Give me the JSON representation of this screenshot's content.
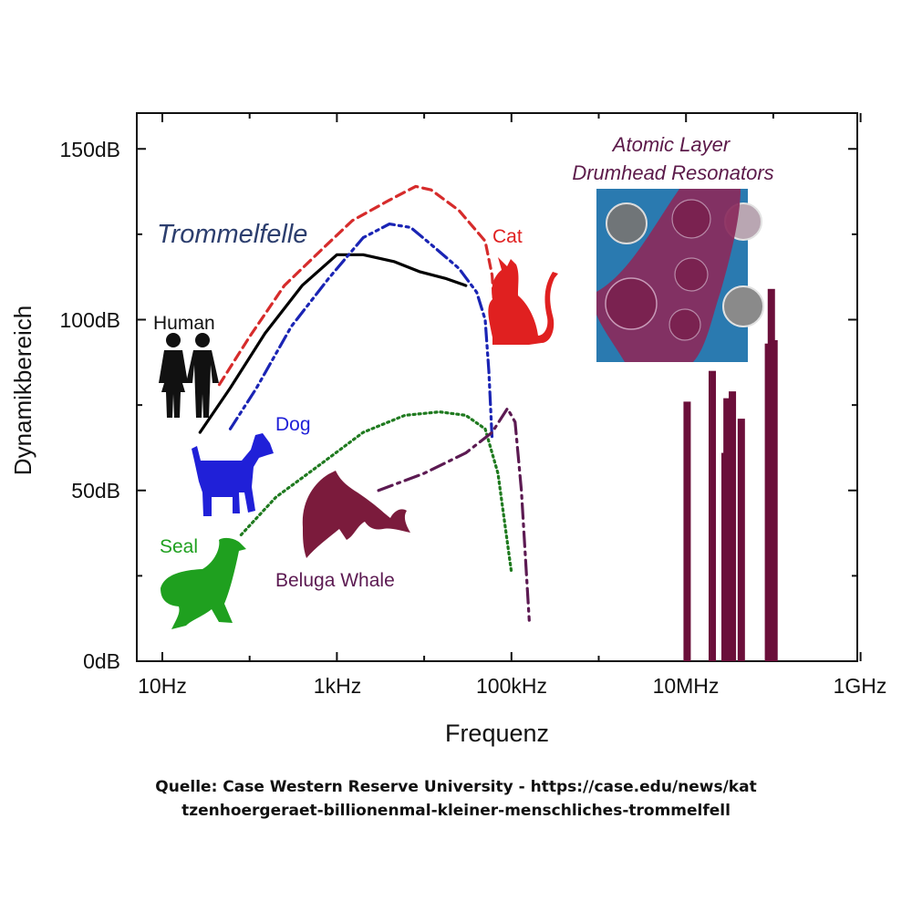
{
  "chart_data": {
    "type": "line",
    "x_scale": "log",
    "xlabel": "Frequenz",
    "ylabel": "Dynamikbereich",
    "xlim": [
      "3Hz",
      "1.3GHz"
    ],
    "ylim": [
      0,
      150
    ],
    "x_ticks": [
      "10Hz",
      "1kHz",
      "100kHz",
      "10MHz",
      "1GHz"
    ],
    "y_ticks": [
      "0dB",
      "50dB",
      "100dB",
      "150dB"
    ],
    "grid": false,
    "annotations": {
      "group_label": "Trommelfelle",
      "device_label_line1": "Atomic Layer",
      "device_label_line2": "Drumhead Resonators"
    },
    "series": [
      {
        "name": "Human",
        "style": "solid",
        "color": "#000000",
        "points": [
          [
            27,
            67
          ],
          [
            60,
            80
          ],
          [
            150,
            96
          ],
          [
            400,
            110
          ],
          [
            1000,
            119
          ],
          [
            2000,
            119
          ],
          [
            4500,
            117
          ],
          [
            9000,
            114
          ],
          [
            18000,
            112
          ],
          [
            30000,
            110
          ]
        ]
      },
      {
        "name": "Cat",
        "style": "dashed",
        "color": "#d62b2b",
        "points": [
          [
            45,
            81
          ],
          [
            100,
            95
          ],
          [
            250,
            110
          ],
          [
            700,
            121
          ],
          [
            1500,
            129
          ],
          [
            4000,
            135
          ],
          [
            8000,
            139
          ],
          [
            12000,
            138
          ],
          [
            25000,
            132
          ],
          [
            50000,
            123
          ],
          [
            60000,
            113
          ],
          [
            65000,
            100
          ],
          [
            70000,
            94
          ]
        ]
      },
      {
        "name": "Dog",
        "style": "dash-dot-dot",
        "color": "#1a24b4",
        "points": [
          [
            60,
            68
          ],
          [
            120,
            80
          ],
          [
            300,
            98
          ],
          [
            800,
            112
          ],
          [
            2000,
            124
          ],
          [
            4000,
            128
          ],
          [
            7000,
            127
          ],
          [
            12000,
            122
          ],
          [
            25000,
            115
          ],
          [
            40000,
            108
          ],
          [
            50000,
            100
          ],
          [
            55000,
            85
          ],
          [
            60000,
            65
          ]
        ]
      },
      {
        "name": "Seal",
        "style": "dotted",
        "color": "#1f7a1f",
        "points": [
          [
            80,
            37
          ],
          [
            200,
            48
          ],
          [
            600,
            57
          ],
          [
            2000,
            67
          ],
          [
            6000,
            72
          ],
          [
            15000,
            73
          ],
          [
            30000,
            72
          ],
          [
            50000,
            68
          ],
          [
            70000,
            55
          ],
          [
            100000,
            26
          ]
        ]
      },
      {
        "name": "Beluga Whale",
        "style": "dash-dot",
        "color": "#5c1a52",
        "points": [
          [
            3000,
            50
          ],
          [
            10000,
            55
          ],
          [
            30000,
            61
          ],
          [
            60000,
            67
          ],
          [
            90000,
            74
          ],
          [
            110000,
            70
          ],
          [
            130000,
            50
          ],
          [
            160000,
            12
          ]
        ]
      }
    ],
    "resonator_bars": [
      {
        "frequency_mhz": 10.3,
        "value": 76
      },
      {
        "frequency_mhz": 20,
        "value": 85
      },
      {
        "frequency_mhz": 28,
        "value": 61
      },
      {
        "frequency_mhz": 29.5,
        "value": 77
      },
      {
        "frequency_mhz": 34,
        "value": 79
      },
      {
        "frequency_mhz": 43,
        "value": 71
      },
      {
        "frequency_mhz": 88,
        "value": 93
      },
      {
        "frequency_mhz": 95,
        "value": 109
      },
      {
        "frequency_mhz": 102,
        "value": 94
      }
    ],
    "silhouettes": [
      "human-icon",
      "dog-icon",
      "seal-icon",
      "cat-icon",
      "whale-icon"
    ]
  },
  "colors": {
    "human": "#000000",
    "cat": "#e02020",
    "dog": "#2020d8",
    "seal": "#1fa01f",
    "whale": "#7b1b3c",
    "bars": "#6b0f3a",
    "trommelfelle": "#2c3e6e",
    "device_title": "#5c1a4a",
    "device_bg": "#2a7ab0",
    "device_layer": "#8a2a5c"
  },
  "source": {
    "line1": "Quelle: Case Western Reserve University - https://case.edu/news/kat",
    "line2": "tzenhoergeraet-billionenmal-kleiner-menschliches-trommelfell"
  }
}
